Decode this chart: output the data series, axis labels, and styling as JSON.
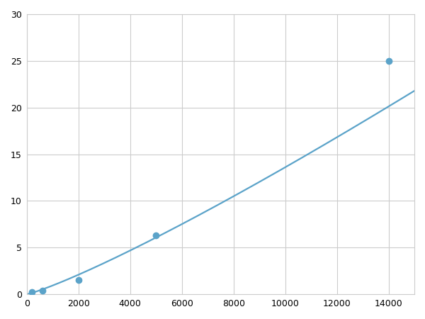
{
  "x_points": [
    200,
    600,
    2000,
    5000,
    14000
  ],
  "y_points": [
    0.2,
    0.4,
    1.5,
    6.3,
    25.0
  ],
  "line_color": "#5ba3c9",
  "marker_color": "#5ba3c9",
  "marker_size": 6,
  "line_width": 1.6,
  "xlim": [
    0,
    15000
  ],
  "ylim": [
    0,
    30
  ],
  "xticks": [
    0,
    2000,
    4000,
    6000,
    8000,
    10000,
    12000,
    14000
  ],
  "yticks": [
    0,
    5,
    10,
    15,
    20,
    25,
    30
  ],
  "grid_color": "#cccccc",
  "background_color": "#ffffff",
  "spine_color": "#cccccc"
}
